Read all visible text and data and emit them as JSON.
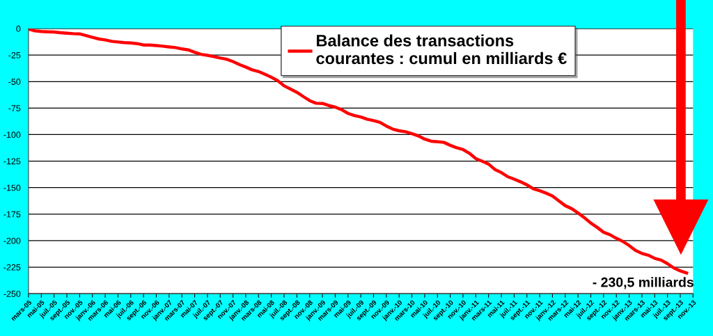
{
  "chart_data": {
    "type": "line",
    "categories": [
      "mars-05",
      null,
      "mai-05",
      null,
      "juil.-05",
      null,
      "sept.-05",
      null,
      "nov.-05",
      null,
      "janv.-06",
      null,
      "mars-06",
      null,
      "mai-06",
      null,
      "juil.-06",
      null,
      "sept.-06",
      null,
      "nov.-06",
      null,
      "janv.-07",
      null,
      "mars-07",
      null,
      "mai-07",
      null,
      "juil.-07",
      null,
      "sept.-07",
      null,
      "nov.-07",
      null,
      "janv.-08",
      null,
      "mars-08",
      null,
      "mai-08",
      null,
      "juil.-08",
      null,
      "sept.-08",
      null,
      "nov.-08",
      null,
      "janv.-09",
      null,
      "mars-09",
      null,
      "mai-09",
      null,
      "juil.-09",
      null,
      "sept.-09",
      null,
      "nov.-09",
      null,
      "janv.-10",
      null,
      "mars-10",
      null,
      "mai-10",
      null,
      "juil.-10",
      null,
      "sept.-10",
      null,
      "nov.-10",
      null,
      "janv.-11",
      null,
      "mars-11",
      null,
      "mai-11",
      null,
      "juil.-11",
      null,
      "sept.-11",
      null,
      "nov.-11",
      null,
      "janv.-12",
      null,
      "mars-12",
      null,
      "mai-12",
      null,
      "juil.-12",
      null,
      "sept.-12",
      null,
      "nov.-12",
      null,
      "janv.-13",
      null,
      "mars-13",
      null,
      "mai-13",
      null,
      "juil.-13",
      null,
      "sept.-13",
      null,
      "nov.-13"
    ],
    "series": [
      {
        "name": "Balance des transactions\ncourantes : cumul en milliards €",
        "color": "#ff0000",
        "values": [
          -0.5,
          -2.2,
          -2.8,
          -3.1,
          -3.3,
          -3.9,
          -4.4,
          -4.8,
          -5.0,
          -6.6,
          -8.3,
          -9.8,
          -10.7,
          -12,
          -12.7,
          -13.3,
          -13.6,
          -14.2,
          -15.5,
          -15.5,
          -16,
          -16.6,
          -17.3,
          -17.9,
          -19.2,
          -20.1,
          -22.3,
          -24.3,
          -25.2,
          -26.5,
          -27.8,
          -28.9,
          -31.1,
          -33.9,
          -36.3,
          -38.9,
          -40.5,
          -43.1,
          -45.9,
          -49.2,
          -54,
          -57.1,
          -60.1,
          -64.1,
          -68,
          -70.4,
          -70.6,
          -72.6,
          -74.1,
          -76.5,
          -80,
          -82,
          -83.4,
          -85.5,
          -86.8,
          -88.4,
          -91.9,
          -94.8,
          -96.4,
          -97.3,
          -99.1,
          -101.2,
          -104.2,
          -106.2,
          -106.7,
          -107.3,
          -110.1,
          -112.4,
          -114.1,
          -117.6,
          -122.6,
          -125.1,
          -127.8,
          -132.9,
          -135.8,
          -139.7,
          -142,
          -144.5,
          -147.4,
          -151.1,
          -152.9,
          -155.2,
          -157.9,
          -162.5,
          -167,
          -169.8,
          -173.9,
          -178.4,
          -183.4,
          -187.5,
          -192.1,
          -194.4,
          -197.8,
          -200.7,
          -204.6,
          -209.2,
          -212.1,
          -213.7,
          -216.7,
          -218.3,
          -221.7,
          -225.8,
          -228.5,
          -230.5,
          null
        ]
      }
    ],
    "ylim": [
      -250,
      0
    ],
    "yticks": [
      -250,
      -225,
      -200,
      -175,
      -150,
      -125,
      -100,
      -75,
      -50,
      -25,
      0
    ],
    "grid": "y",
    "legend": "top right",
    "marker": "none",
    "line_style": "solid",
    "annotations": [
      "- 230,5 milliards"
    ]
  }
}
